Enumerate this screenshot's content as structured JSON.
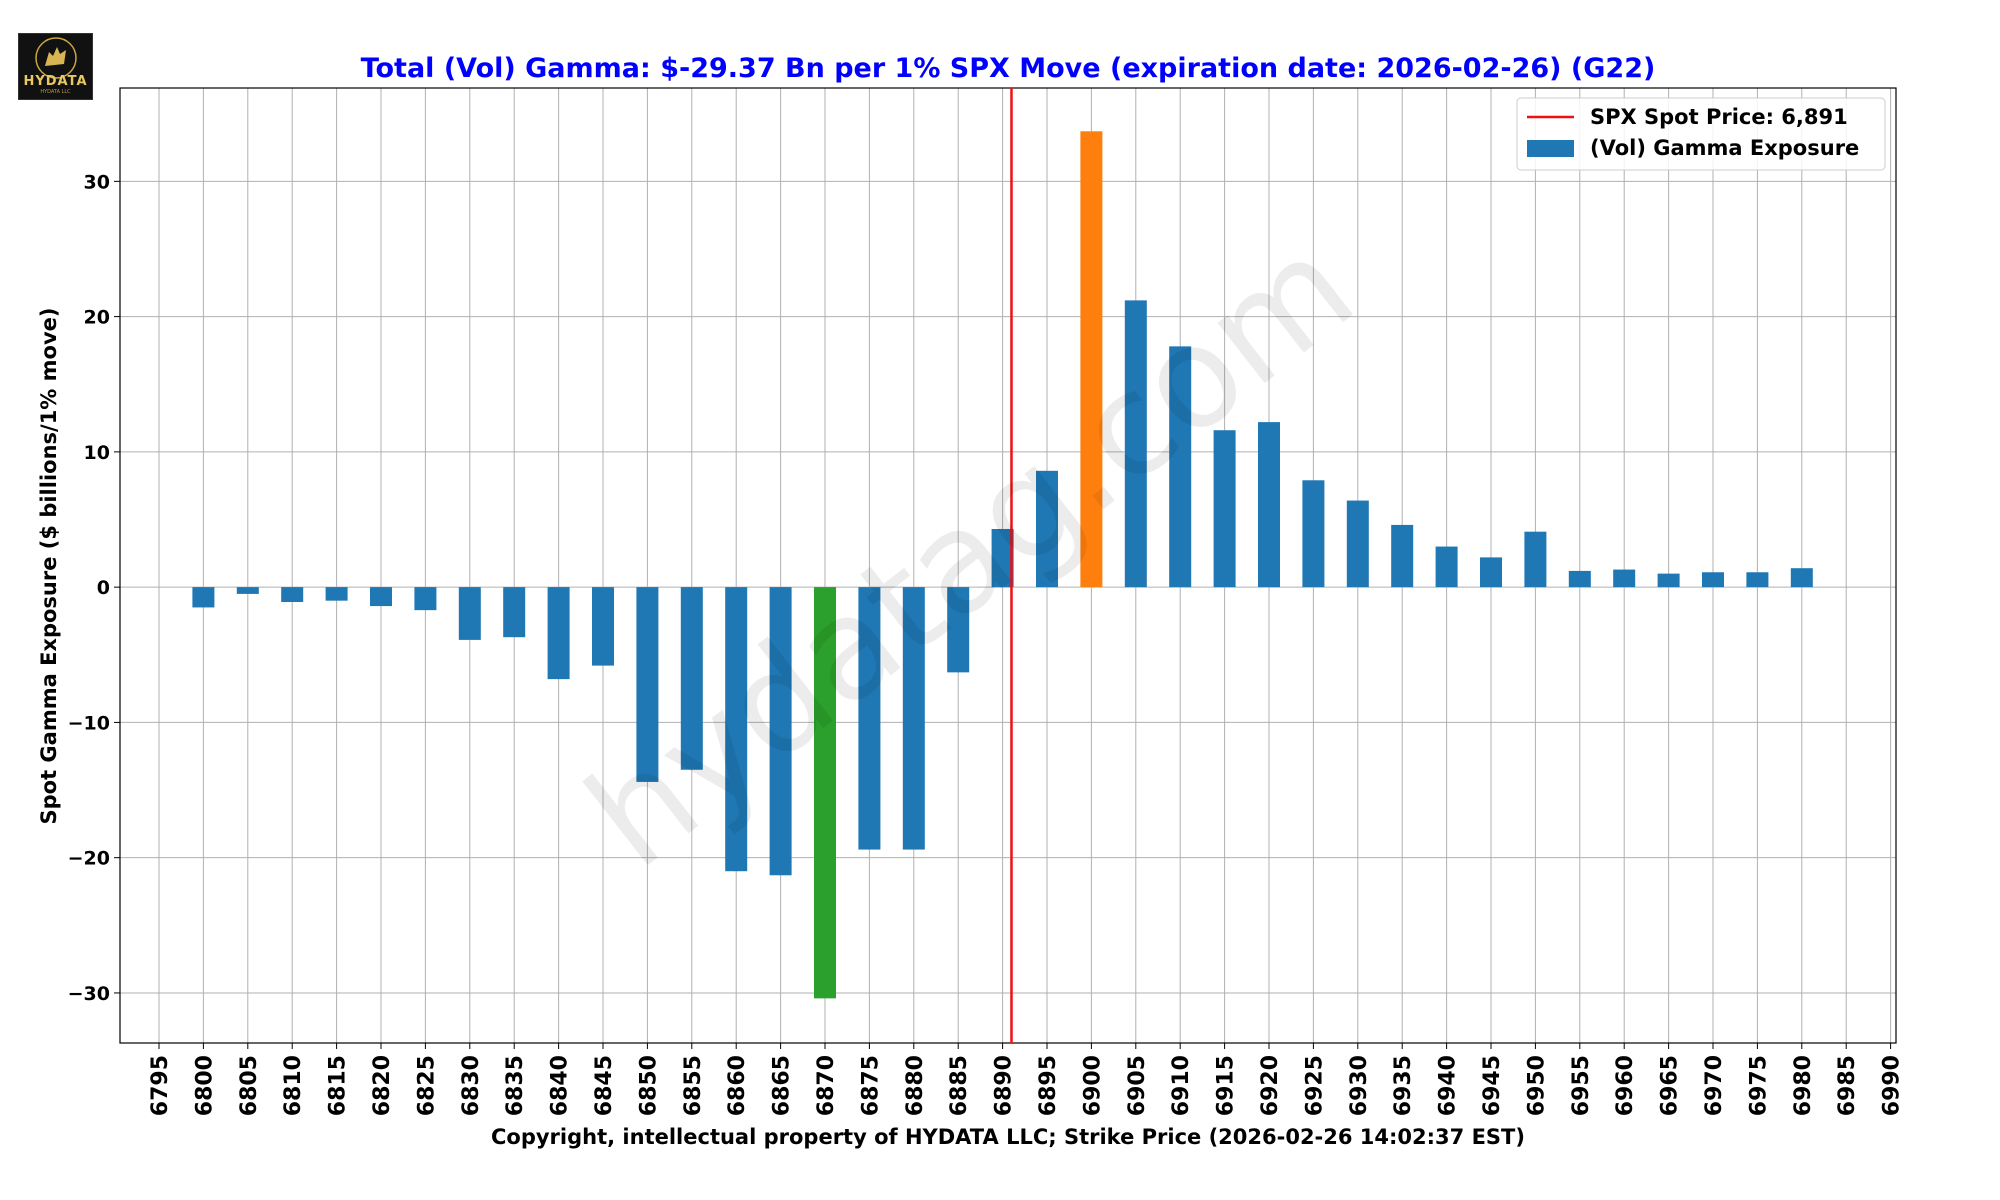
{
  "logo": {
    "text": "HYDATA",
    "subtext": "HYDATA LLC"
  },
  "chart_data": {
    "type": "bar",
    "title": "Total (Vol) Gamma: $-29.37 Bn per 1% SPX Move (expiration date: 2026-02-26) (G22)",
    "xlabel": "Copyright, intellectual property of HYDATA LLC; Strike Price (2026-02-26 14:02:37 EST)",
    "ylabel": "Spot Gamma Exposure ($ billions/1% move)",
    "ylim": [
      -33.7,
      36.9
    ],
    "yticks": [
      30,
      20,
      10,
      0,
      -10,
      -20,
      -30
    ],
    "ytick_labels": [
      "30",
      "20",
      "10",
      "0",
      "−10",
      "−20",
      "−30"
    ],
    "grid": true,
    "categories": [
      "6795",
      "6800",
      "6805",
      "6810",
      "6815",
      "6820",
      "6825",
      "6830",
      "6835",
      "6840",
      "6845",
      "6850",
      "6855",
      "6860",
      "6865",
      "6870",
      "6875",
      "6880",
      "6885",
      "6890",
      "6895",
      "6900",
      "6905",
      "6910",
      "6915",
      "6920",
      "6925",
      "6930",
      "6935",
      "6940",
      "6945",
      "6950",
      "6955",
      "6960",
      "6965",
      "6970",
      "6975",
      "6980",
      "6985",
      "6990"
    ],
    "series": [
      {
        "name": "(Vol) Gamma Exposure",
        "color": "#1f77b4",
        "values": [
          null,
          -1.5,
          -0.5,
          -1.1,
          -1.0,
          -1.4,
          -1.7,
          -3.9,
          -3.7,
          -6.8,
          -5.8,
          -14.4,
          -13.5,
          -21.0,
          -21.3,
          -30.4,
          -19.4,
          -19.4,
          -6.3,
          4.3,
          8.6,
          33.7,
          21.2,
          17.8,
          11.6,
          12.2,
          7.9,
          6.4,
          4.6,
          3.0,
          2.2,
          4.1,
          1.2,
          1.3,
          1.0,
          1.1,
          1.1,
          1.4,
          null,
          null
        ]
      }
    ],
    "highlights": {
      "max_positive": {
        "category": "6900",
        "color": "#ff7f0e"
      },
      "max_negative": {
        "category": "6870",
        "color": "#2ca02c"
      }
    },
    "spot_line": {
      "label": "SPX Spot Price: 6,891",
      "value": 6891,
      "color": "#ee1111"
    },
    "legend": {
      "position": "top-right",
      "entries": [
        "SPX Spot Price: 6,891",
        "(Vol) Gamma Exposure"
      ]
    },
    "watermark": "hydatag.com",
    "title_color": "#0000ff"
  }
}
